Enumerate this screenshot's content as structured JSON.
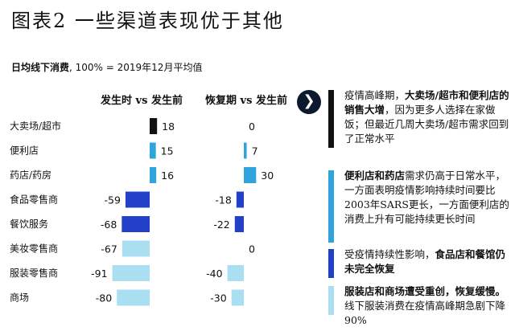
{
  "title": "图表2 一些渠道表现优于其他",
  "subtitle": {
    "bold": "日均线下消费",
    "rest": ", 100% = 2019年12月平均值"
  },
  "icons": {
    "arrow": "chevron-right-icon"
  },
  "colors": {
    "black": "#111111",
    "light_blue": "#2ea3dc",
    "dark_blue": "#2340c8",
    "pale_blue": "#a9dff0"
  },
  "chart_data": {
    "type": "bar",
    "orientation": "horizontal-diverging",
    "categories": [
      "大卖场/超市",
      "便利店",
      "药店/药房",
      "食品零售商",
      "餐饮服务",
      "美妆零售商",
      "服装零售商",
      "商场"
    ],
    "series": [
      {
        "name": "发生时 vs 发生前",
        "values": [
          18,
          15,
          16,
          -59,
          -68,
          -67,
          -91,
          -80
        ],
        "colors": [
          "#111111",
          "#2ea3dc",
          "#2ea3dc",
          "#2340c8",
          "#2340c8",
          "#a9dff0",
          "#a9dff0",
          "#a9dff0"
        ]
      },
      {
        "name": "恢复期 vs 发生前",
        "values": [
          0,
          7,
          30,
          -18,
          -22,
          0,
          -40,
          -30
        ],
        "colors": [
          "#111111",
          "#2ea3dc",
          "#2ea3dc",
          "#2340c8",
          "#2340c8",
          "#a9dff0",
          "#a9dff0",
          "#a9dff0"
        ]
      }
    ],
    "legend": "none"
  },
  "callouts": [
    {
      "color": "#111111",
      "parts": [
        {
          "t": "疫情高峰期，",
          "b": false
        },
        {
          "t": "大卖场/超市和便利店的销售大增",
          "b": true
        },
        {
          "t": "，因为更多人选择在家做饭；但最近几周大卖场/超市需求回到了正常水平",
          "b": false
        }
      ]
    },
    {
      "color": "#2ea3dc",
      "parts": [
        {
          "t": "便利店和药店",
          "b": true
        },
        {
          "t": "需求仍高于日常水平，一方面表明疫情影响持续时间要比2003年SARS更长，一方面便利店的消费上升有可能持续更长时间",
          "b": false
        }
      ]
    },
    {
      "color": "#2340c8",
      "parts": [
        {
          "t": "受疫情持续性影响，",
          "b": false
        },
        {
          "t": "食品店和餐馆仍未完全恢复",
          "b": true
        }
      ]
    },
    {
      "color": "#a9dff0",
      "parts": [
        {
          "t": "服装店和商场遭受重创，恢复缓慢。",
          "b": true
        },
        {
          "t": "线下服装消费在疫情高峰期急剧下降90%",
          "b": false
        }
      ]
    }
  ]
}
